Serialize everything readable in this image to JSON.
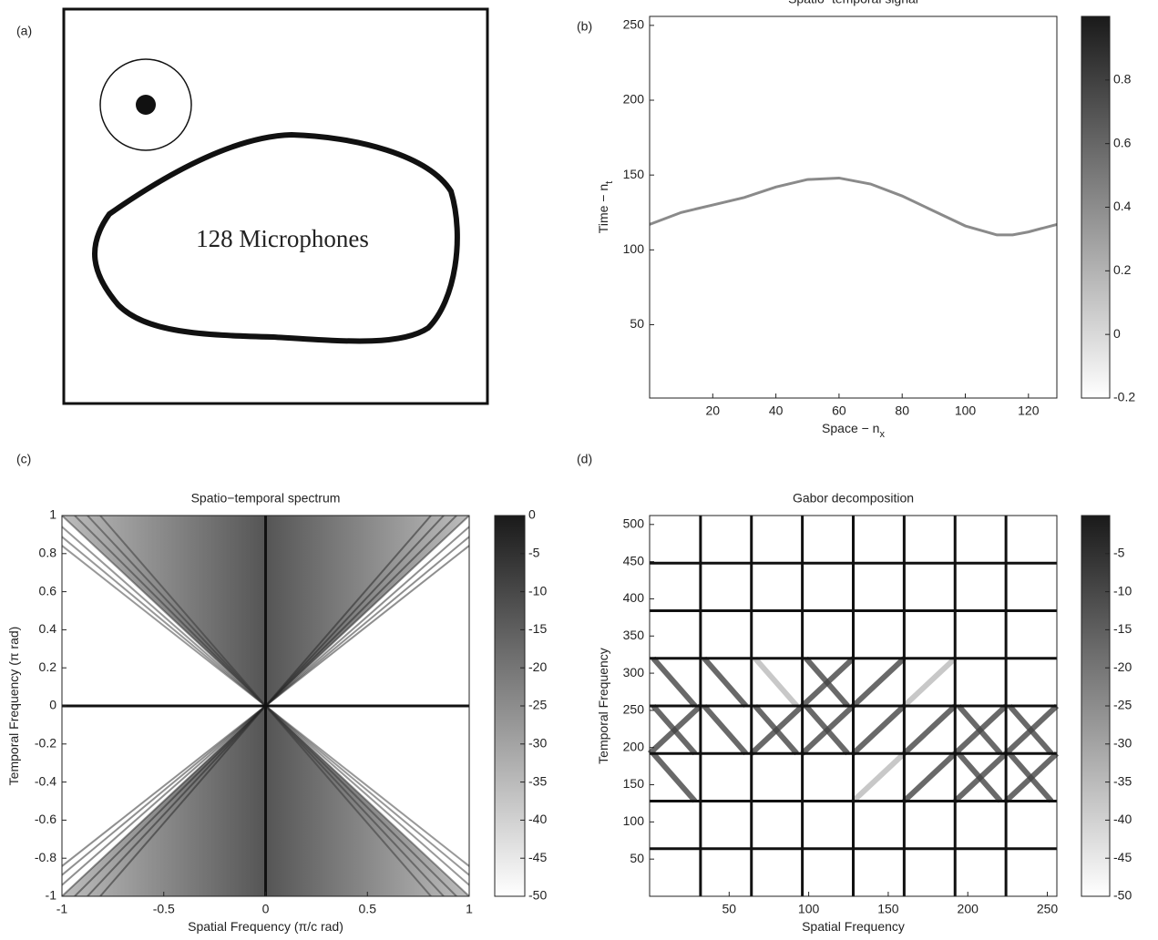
{
  "panel_a": {
    "label": "(a)",
    "text": "128 Microphones"
  },
  "chart_data": [
    {
      "panel": "(b)",
      "type": "line",
      "title": "Spatio−temporal signal",
      "xlabel": "Space − n",
      "xlabel_sub": "x",
      "ylabel": "Time − n",
      "ylabel_sub": "t",
      "x": [
        0,
        10,
        20,
        30,
        40,
        50,
        60,
        70,
        80,
        90,
        100,
        110,
        115,
        120,
        129
      ],
      "values": [
        117,
        125,
        130,
        135,
        142,
        147,
        148,
        144,
        136,
        126,
        116,
        110,
        110,
        112,
        117
      ],
      "color": "#8a8a8a",
      "xlim": [
        0,
        129
      ],
      "ylim": [
        1,
        256
      ],
      "xticks": [
        20,
        40,
        60,
        80,
        100,
        120
      ],
      "yticks": [
        50,
        100,
        150,
        200,
        250
      ],
      "colorbar": {
        "lim": [
          -0.2,
          1
        ],
        "ticks": [
          -0.2,
          0,
          0.2,
          0.4,
          0.6,
          0.8
        ]
      }
    },
    {
      "panel": "(c)",
      "type": "spectrum",
      "title": "Spatio−temporal spectrum",
      "xlabel": "Spatial Frequency (π/c rad)",
      "ylabel": "Temporal Frequency (π rad)",
      "xlim": [
        -1,
        1
      ],
      "ylim": [
        -1,
        1
      ],
      "xticks": [
        -1,
        -0.5,
        0,
        0.5,
        1
      ],
      "yticks": [
        -1,
        -0.8,
        -0.6,
        -0.4,
        -0.2,
        0,
        0.2,
        0.4,
        0.6,
        0.8,
        1
      ],
      "colorbar": {
        "lim": [
          -50,
          0
        ],
        "ticks": [
          0,
          -5,
          -10,
          -15,
          -20,
          -25,
          -30,
          -35,
          -40,
          -45,
          -50
        ]
      }
    },
    {
      "panel": "(d)",
      "type": "gabor",
      "title": "Gabor decomposition",
      "xlabel": "Spatial Frequency",
      "ylabel": "Temporal Frequency",
      "xlim": [
        0,
        256
      ],
      "ylim": [
        0,
        512
      ],
      "xticks": [
        50,
        100,
        150,
        200,
        250
      ],
      "yticks": [
        50,
        100,
        150,
        200,
        250,
        300,
        350,
        400,
        450,
        500
      ],
      "colorbar": {
        "lim": [
          -50,
          0
        ],
        "ticks": [
          -5,
          -10,
          -15,
          -20,
          -25,
          -30,
          -35,
          -40,
          -45,
          -50
        ]
      }
    }
  ]
}
